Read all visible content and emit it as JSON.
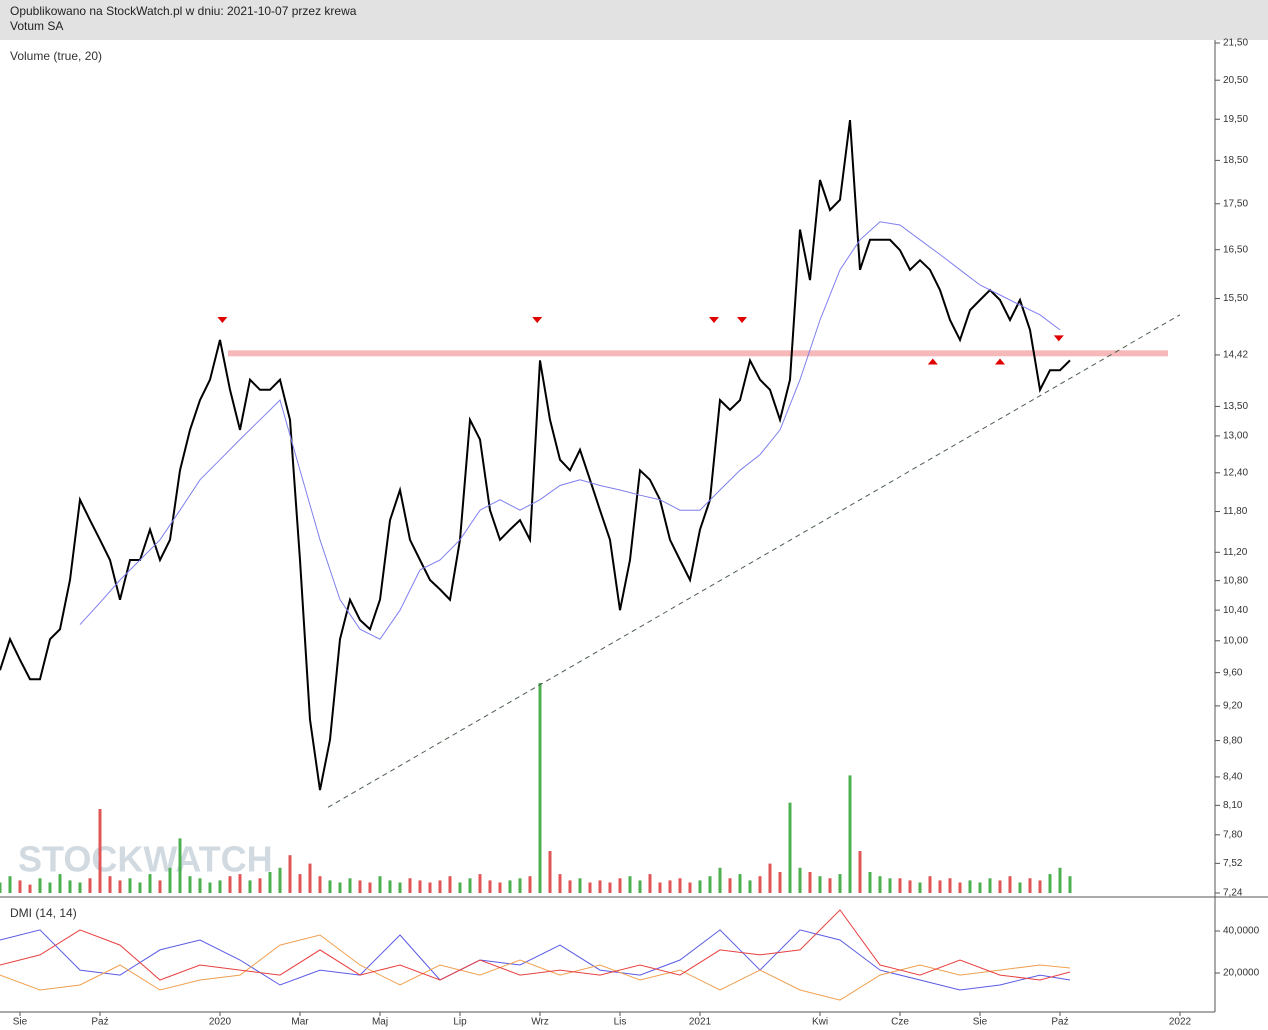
{
  "header": {
    "line1": "Opublikowano na StockWatch.pl w dniu: 2021-10-07 przez krewa",
    "line2": "Votum SA"
  },
  "chart_data": [
    {
      "type": "line",
      "log_scale": true,
      "xlim": [
        -0.5,
        29.875
      ],
      "ylim": [
        7.24,
        21.5
      ],
      "watermark": "STOCKWATCH",
      "yticks": [
        {
          "value": 21.5,
          "label": "21,50"
        },
        {
          "value": 20.5,
          "label": "20,50"
        },
        {
          "value": 19.5,
          "label": "19,50"
        },
        {
          "value": 18.5,
          "label": "18,50"
        },
        {
          "value": 17.5,
          "label": "17,50"
        },
        {
          "value": 16.5,
          "label": "16,50"
        },
        {
          "value": 15.5,
          "label": "15,50"
        },
        {
          "value": 14.42,
          "label": "14,42"
        },
        {
          "value": 13.5,
          "label": "13,50"
        },
        {
          "value": 13,
          "label": "13,00"
        },
        {
          "value": 12.4,
          "label": "12,40"
        },
        {
          "value": 11.8,
          "label": "11,80"
        },
        {
          "value": 11.2,
          "label": "11,20"
        },
        {
          "value": 10.8,
          "label": "10,80"
        },
        {
          "value": 10.4,
          "label": "10,40"
        },
        {
          "value": 10,
          "label": "10,00"
        },
        {
          "value": 9.6,
          "label": "9,60"
        },
        {
          "value": 9.2,
          "label": "9,20"
        },
        {
          "value": 8.8,
          "label": "8,80"
        },
        {
          "value": 8.4,
          "label": "8,40"
        },
        {
          "value": 8.1,
          "label": "8,10"
        },
        {
          "value": 7.8,
          "label": "7,80"
        },
        {
          "value": 7.52,
          "label": "7,52"
        },
        {
          "value": 7.24,
          "label": "7,24"
        }
      ],
      "series": [
        {
          "color": "#000000",
          "width": 2,
          "x": [
            -0.5,
            -0.25,
            0,
            0.25,
            0.5,
            0.75,
            1,
            1.25,
            1.5,
            1.75,
            2,
            2.25,
            2.5,
            2.75,
            3,
            3.25,
            3.5,
            3.75,
            4,
            4.25,
            4.5,
            4.75,
            5,
            5.25,
            5.5,
            5.75,
            6,
            6.25,
            6.5,
            6.75,
            7,
            7.25,
            7.5,
            7.75,
            8,
            8.25,
            8.5,
            8.75,
            9,
            9.25,
            9.5,
            9.75,
            10,
            10.25,
            10.5,
            10.75,
            11,
            11.25,
            11.5,
            11.75,
            12,
            12.25,
            12.5,
            12.75,
            13,
            13.25,
            13.5,
            13.75,
            14,
            14.25,
            14.5,
            14.75,
            15,
            15.25,
            15.5,
            15.75,
            16,
            16.25,
            16.5,
            16.75,
            17,
            17.25,
            17.5,
            17.75,
            18,
            18.25,
            18.5,
            18.75,
            19,
            19.25,
            19.5,
            19.75,
            20,
            20.25,
            20.5,
            20.75,
            21,
            21.25,
            21.5,
            21.75,
            22,
            22.25,
            22.5,
            22.75,
            23,
            23.25,
            23.5,
            23.75,
            24,
            24.25,
            24.5,
            24.75,
            25,
            25.25,
            25.5,
            25.75,
            26,
            26.25
          ],
          "values": [
            9.63,
            10.02,
            9.76,
            9.52,
            9.52,
            10.02,
            10.15,
            10.81,
            11.98,
            11.67,
            11.38,
            11.09,
            10.54,
            11.09,
            11.09,
            11.53,
            11.09,
            11.38,
            12.44,
            13.1,
            13.61,
            13.97,
            14.7,
            13.79,
            13.1,
            13.97,
            13.79,
            13.79,
            13.97,
            13.27,
            11.09,
            9.04,
            8.26,
            8.81,
            10.02,
            10.54,
            10.27,
            10.15,
            10.54,
            11.67,
            12.13,
            11.38,
            11.09,
            10.81,
            10.68,
            10.54,
            11.38,
            13.27,
            12.94,
            11.82,
            11.38,
            11.53,
            11.67,
            11.38,
            14.32,
            13.27,
            12.61,
            12.44,
            12.77,
            12.29,
            11.82,
            11.38,
            10.4,
            11.09,
            12.44,
            12.29,
            11.98,
            11.38,
            11.09,
            10.81,
            11.53,
            11.98,
            13.61,
            13.44,
            13.61,
            14.32,
            13.97,
            13.79,
            13.27,
            13.97,
            16.93,
            15.87,
            18.04,
            17.36,
            17.59,
            19.48,
            16.08,
            16.71,
            16.71,
            16.71,
            16.49,
            16.08,
            16.28,
            16.08,
            15.67,
            15.08,
            14.7,
            15.27,
            15.47,
            15.67,
            15.47,
            15.08,
            15.47,
            14.89,
            13.79,
            14.14,
            14.14,
            14.32
          ]
        },
        {
          "color": "#7f7ff0",
          "width": 1,
          "x": [
            1.5,
            2,
            2.5,
            3,
            3.5,
            4,
            4.5,
            5,
            5.5,
            6,
            6.5,
            7,
            7.5,
            8,
            8.5,
            9,
            9.5,
            10,
            10.5,
            11,
            11.5,
            12,
            12.5,
            13,
            13.5,
            14,
            14.5,
            15,
            15.5,
            16,
            16.5,
            17,
            17.5,
            18,
            18.5,
            19,
            19.5,
            20,
            20.5,
            21,
            21.5,
            22,
            22.5,
            23,
            23.5,
            24,
            24.5,
            25,
            25.5,
            26
          ],
          "values": [
            10.21,
            10.5,
            10.81,
            11.09,
            11.38,
            11.82,
            12.29,
            12.61,
            12.94,
            13.27,
            13.61,
            12.44,
            11.38,
            10.54,
            10.15,
            10.02,
            10.4,
            10.95,
            11.09,
            11.38,
            11.82,
            11.98,
            11.82,
            11.98,
            12.2,
            12.29,
            12.2,
            12.13,
            12.05,
            11.98,
            11.82,
            11.82,
            12.13,
            12.44,
            12.69,
            13.1,
            13.97,
            15.08,
            16.08,
            16.71,
            17.1,
            17.03,
            16.71,
            16.4,
            16.08,
            15.77,
            15.57,
            15.37,
            15.18,
            14.89
          ]
        }
      ],
      "bands": [
        {
          "value": 14.45,
          "x": [
            5.2,
            28.7
          ],
          "color": "#f6b8b8"
        }
      ],
      "trendlines": [
        {
          "x": [
            7.7,
            29.0
          ],
          "values": [
            8.08,
            15.18
          ],
          "color": "#4d5e4d",
          "dashed": true
        }
      ],
      "markers": [
        {
          "direction": "down",
          "color": "#e00000",
          "x": [
            5.06,
            12.93,
            17.35,
            18.05,
            25.97
          ],
          "values": [
            15.08,
            15.08,
            15.08,
            15.08,
            14.73
          ]
        },
        {
          "direction": "up",
          "color": "#e00000",
          "x": [
            22.82,
            24.5
          ],
          "values": [
            14.3,
            14.3
          ]
        }
      ],
      "volume": {
        "label": "Volume (true, 20)",
        "ylim": [
          0,
          100
        ],
        "up_color": "#4caf50",
        "down_color": "#e05555",
        "values": [
          5,
          8,
          6,
          4,
          7,
          5,
          9,
          6,
          5,
          7,
          40,
          8,
          6,
          7,
          5,
          9,
          6,
          12,
          26,
          8,
          7,
          5,
          6,
          8,
          9,
          6,
          7,
          10,
          12,
          18,
          9,
          14,
          8,
          6,
          5,
          7,
          6,
          5,
          8,
          6,
          5,
          7,
          6,
          5,
          6,
          8,
          5,
          7,
          9,
          6,
          5,
          6,
          7,
          8,
          100,
          20,
          9,
          6,
          7,
          5,
          6,
          5,
          7,
          8,
          6,
          9,
          5,
          6,
          7,
          5,
          6,
          8,
          12,
          7,
          9,
          6,
          8,
          14,
          10,
          43,
          12,
          10,
          8,
          7,
          9,
          56,
          20,
          10,
          8,
          7,
          7,
          6,
          5,
          8,
          6,
          7,
          5,
          6,
          5,
          7,
          6,
          8,
          5,
          7,
          6,
          9,
          12,
          8
        ]
      }
    },
    {
      "type": "line",
      "label": "DMI (14, 14)",
      "xlim": [
        -0.5,
        29.875
      ],
      "ylim": [
        2.4,
        55.7
      ],
      "yticks": [
        {
          "value": 40,
          "label": "40,0000"
        },
        {
          "value": 20,
          "label": "20,0000"
        }
      ],
      "xticks": [
        {
          "value": 0,
          "label": "Sie"
        },
        {
          "value": 2,
          "label": "Paź"
        },
        {
          "value": 5,
          "label": "2020"
        },
        {
          "value": 7,
          "label": "Mar"
        },
        {
          "value": 9,
          "label": "Maj"
        },
        {
          "value": 11,
          "label": "Lip"
        },
        {
          "value": 13,
          "label": "Wrz"
        },
        {
          "value": 15,
          "label": "Lis"
        },
        {
          "value": 17,
          "label": "2021"
        },
        {
          "value": 20,
          "label": "Kwi"
        },
        {
          "value": 22,
          "label": "Cze"
        },
        {
          "value": 24,
          "label": "Sie"
        },
        {
          "value": 26,
          "label": "Paź"
        },
        {
          "value": 29,
          "label": "2022"
        }
      ],
      "series": [
        {
          "color": "#5a5ae6",
          "width": 1,
          "x": [
            -0.5,
            0.5,
            1.5,
            2.5,
            3.5,
            4.5,
            5.5,
            6.5,
            7.5,
            8.5,
            9.5,
            10.5,
            11.5,
            12.5,
            13.5,
            14.5,
            15.5,
            16.5,
            17.5,
            18.5,
            19.5,
            20.5,
            21.5,
            22.5,
            23.5,
            24.5,
            25.5,
            26.25
          ],
          "values": [
            35.7,
            40.5,
            21.4,
            19.0,
            31.0,
            35.7,
            26.2,
            14.3,
            21.4,
            19.0,
            38.1,
            16.7,
            26.2,
            23.8,
            33.3,
            21.4,
            19.0,
            26.2,
            40.5,
            21.4,
            40.5,
            35.7,
            21.4,
            16.7,
            11.9,
            14.3,
            19.0,
            16.7
          ]
        },
        {
          "color": "#f0a050",
          "width": 1,
          "x": [
            -0.5,
            0.5,
            1.5,
            2.5,
            3.5,
            4.5,
            5.5,
            6.5,
            7.5,
            8.5,
            9.5,
            10.5,
            11.5,
            12.5,
            13.5,
            14.5,
            15.5,
            16.5,
            17.5,
            18.5,
            19.5,
            20.5,
            21.5,
            22.5,
            23.5,
            24.5,
            25.5,
            26.25
          ],
          "values": [
            19.0,
            11.9,
            14.3,
            23.8,
            11.9,
            16.7,
            19.0,
            33.3,
            38.1,
            23.8,
            14.3,
            23.8,
            19.0,
            26.2,
            19.0,
            23.8,
            16.7,
            21.4,
            11.9,
            21.4,
            11.9,
            7.1,
            19.0,
            23.8,
            19.0,
            21.4,
            23.8,
            22.4
          ]
        },
        {
          "color": "#e84040",
          "width": 1,
          "x": [
            -0.5,
            0.5,
            1.5,
            2.5,
            3.5,
            4.5,
            5.5,
            6.5,
            7.5,
            8.5,
            9.5,
            10.5,
            11.5,
            12.5,
            13.5,
            14.5,
            15.5,
            16.5,
            17.5,
            18.5,
            19.5,
            20.5,
            21.5,
            22.5,
            23.5,
            24.5,
            25.5,
            26.25
          ],
          "values": [
            23.8,
            28.6,
            40.5,
            33.3,
            16.7,
            23.8,
            21.4,
            19.0,
            31.0,
            19.0,
            23.8,
            16.7,
            26.2,
            19.0,
            21.4,
            19.0,
            23.8,
            19.0,
            31.0,
            28.6,
            31.0,
            50.0,
            23.8,
            19.0,
            26.2,
            19.0,
            16.7,
            20.5
          ]
        }
      ]
    }
  ]
}
